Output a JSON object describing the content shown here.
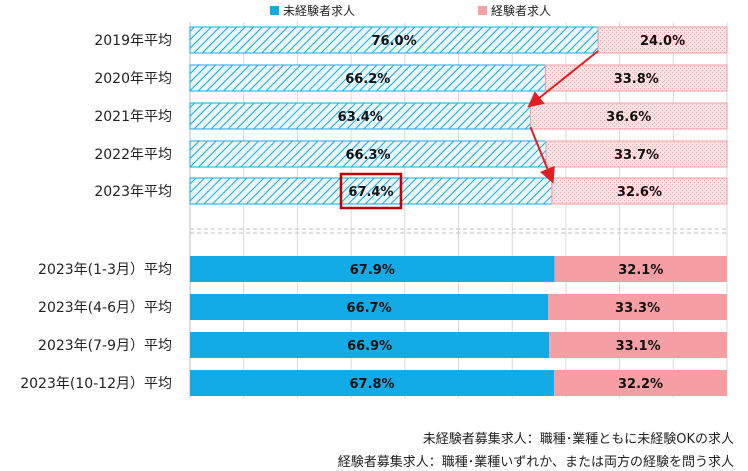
{
  "chart_data": {
    "type": "bar",
    "stacked": true,
    "orientation": "horizontal",
    "percent": true,
    "xlim": [
      0,
      100
    ],
    "grid": true,
    "legend_position": "top",
    "categories": [
      "2019年平均",
      "2020年平均",
      "2021年平均",
      "2022年平均",
      "2023年平均",
      "2023年(1-3月）平均",
      "2023年(4-6月）平均",
      "2023年(7-9月）平均",
      "2023年(10-12月）平均"
    ],
    "series": [
      {
        "name": "未経験者求人",
        "values": [
          76.0,
          66.2,
          63.4,
          66.3,
          67.4,
          67.9,
          66.7,
          66.9,
          67.8
        ],
        "labels": [
          "76.0%",
          "66.2%",
          "63.4%",
          "66.3%",
          "67.4%",
          "67.9%",
          "66.7%",
          "66.9%",
          "67.8%"
        ]
      },
      {
        "name": "経験者求人",
        "values": [
          24.0,
          33.8,
          36.6,
          33.7,
          32.6,
          32.1,
          33.3,
          33.1,
          32.2
        ],
        "labels": [
          "24.0%",
          "33.8%",
          "36.6%",
          "33.7%",
          "32.6%",
          "32.1%",
          "33.3%",
          "33.1%",
          "32.2%"
        ]
      }
    ],
    "hatched_categories": [
      0,
      1,
      2,
      3,
      4
    ],
    "highlighted_label": {
      "category": 4,
      "series": 0
    },
    "arrows": [
      [
        0,
        2
      ],
      [
        2,
        4
      ]
    ]
  },
  "notes": [
    "未経験者募集求人：職種･業種ともに未経験OKの求人",
    "経験者募集求人：職種･業種いずれか、または両方の経験を問う求人"
  ],
  "colors": {
    "inexperienced": "#12abe6",
    "experienced": "#f59ea4",
    "inexperienced_hatch_bg": "#eaf7fd",
    "experienced_hatch_bg": "#fde2e4",
    "highlight": "#c00000",
    "arrow": "#e02020",
    "grid": "#d9d9d9"
  }
}
